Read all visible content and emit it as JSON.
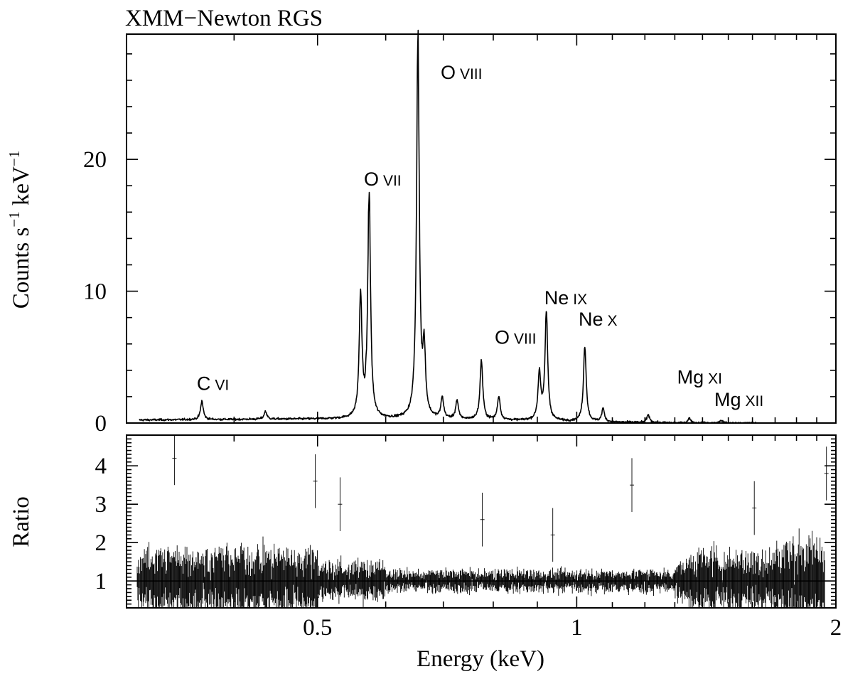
{
  "chart_data": [
    {
      "panel": "top",
      "type": "line",
      "title": "XMM−Newton RGS",
      "ylabel_main": "Counts s",
      "ylabel_sup1": "−1",
      "ylabel_mid": " keV",
      "ylabel_sup2": "−1",
      "x_scale": "log",
      "xlim": [
        0.3,
        2.0
      ],
      "ylim": [
        0,
        29.5
      ],
      "yticks": [
        0,
        10,
        20
      ],
      "ytick_labels": [
        "0",
        "10",
        "20"
      ],
      "baseline_counts": 0.3,
      "lines": [
        {
          "element": "C",
          "ion": "VI",
          "energy": 0.367,
          "peak": 1.4
        },
        {
          "element": "",
          "ion": "",
          "energy": 0.435,
          "peak": 0.6
        },
        {
          "element": "O",
          "ion": "VII",
          "energy": 0.561,
          "peak": 9.3
        },
        {
          "element": "O",
          "ion": "VII",
          "energy": 0.574,
          "peak": 17.2
        },
        {
          "element": "O",
          "ion": "VIII",
          "energy": 0.654,
          "peak": 29.0
        },
        {
          "element": "",
          "ion": "",
          "energy": 0.665,
          "peak": 4.8
        },
        {
          "element": "",
          "ion": "",
          "energy": 0.698,
          "peak": 1.6
        },
        {
          "element": "",
          "ion": "",
          "energy": 0.726,
          "peak": 1.4
        },
        {
          "element": "O",
          "ion": "VIII",
          "energy": 0.775,
          "peak": 4.5
        },
        {
          "element": "",
          "ion": "",
          "energy": 0.812,
          "peak": 1.8
        },
        {
          "element": "Ne",
          "ion": "IX",
          "energy": 0.905,
          "peak": 3.6
        },
        {
          "element": "Ne",
          "ion": "IX",
          "energy": 0.922,
          "peak": 8.2
        },
        {
          "element": "Ne",
          "ion": "X",
          "energy": 1.022,
          "peak": 5.8
        },
        {
          "element": "",
          "ion": "",
          "energy": 1.073,
          "peak": 1.0
        },
        {
          "element": "",
          "ion": "",
          "energy": 1.211,
          "peak": 0.6
        },
        {
          "element": "Mg",
          "ion": "XI",
          "energy": 1.352,
          "peak": 0.35
        },
        {
          "element": "Mg",
          "ion": "XII",
          "energy": 1.472,
          "peak": 0.2
        }
      ],
      "annotations": [
        {
          "id": "c6",
          "element": "C",
          "ion": "VI",
          "energy": 0.362,
          "y": 2.5
        },
        {
          "id": "o7",
          "element": "O",
          "ion": "VII",
          "energy": 0.566,
          "y": 18.0
        },
        {
          "id": "o8a",
          "element": "O",
          "ion": "VIII",
          "energy": 0.695,
          "y": 26.1
        },
        {
          "id": "o8b",
          "element": "O",
          "ion": "VIII",
          "energy": 0.803,
          "y": 6.0
        },
        {
          "id": "ne9",
          "element": "Ne",
          "ion": "IX",
          "energy": 0.917,
          "y": 9.0
        },
        {
          "id": "ne10",
          "element": "Ne",
          "ion": "X",
          "energy": 1.005,
          "y": 7.4
        },
        {
          "id": "mg11",
          "element": "Mg",
          "ion": "XI",
          "energy": 1.308,
          "y": 3.0
        },
        {
          "id": "mg12",
          "element": "Mg",
          "ion": "XII",
          "energy": 1.445,
          "y": 1.3
        }
      ]
    },
    {
      "panel": "bottom",
      "type": "scatter",
      "ylabel": "Ratio",
      "xlabel": "Energy (keV)",
      "x_scale": "log",
      "xlim": [
        0.3,
        2.0
      ],
      "ylim": [
        0.3,
        4.8
      ],
      "yticks": [
        1,
        2,
        3,
        4
      ],
      "ytick_labels": [
        "1",
        "2",
        "3",
        "4"
      ],
      "xticks": [
        0.5,
        1,
        2
      ],
      "xtick_labels": [
        "0.5",
        "1",
        "2"
      ],
      "reference_line": 1.0,
      "outliers": [
        {
          "x": 0.341,
          "y": 4.2
        },
        {
          "x": 0.497,
          "y": 3.6
        },
        {
          "x": 0.531,
          "y": 3.0
        },
        {
          "x": 0.777,
          "y": 2.6
        },
        {
          "x": 0.938,
          "y": 2.2
        },
        {
          "x": 1.159,
          "y": 3.5
        },
        {
          "x": 1.608,
          "y": 2.9
        },
        {
          "x": 1.95,
          "y": 3.8
        }
      ]
    }
  ]
}
